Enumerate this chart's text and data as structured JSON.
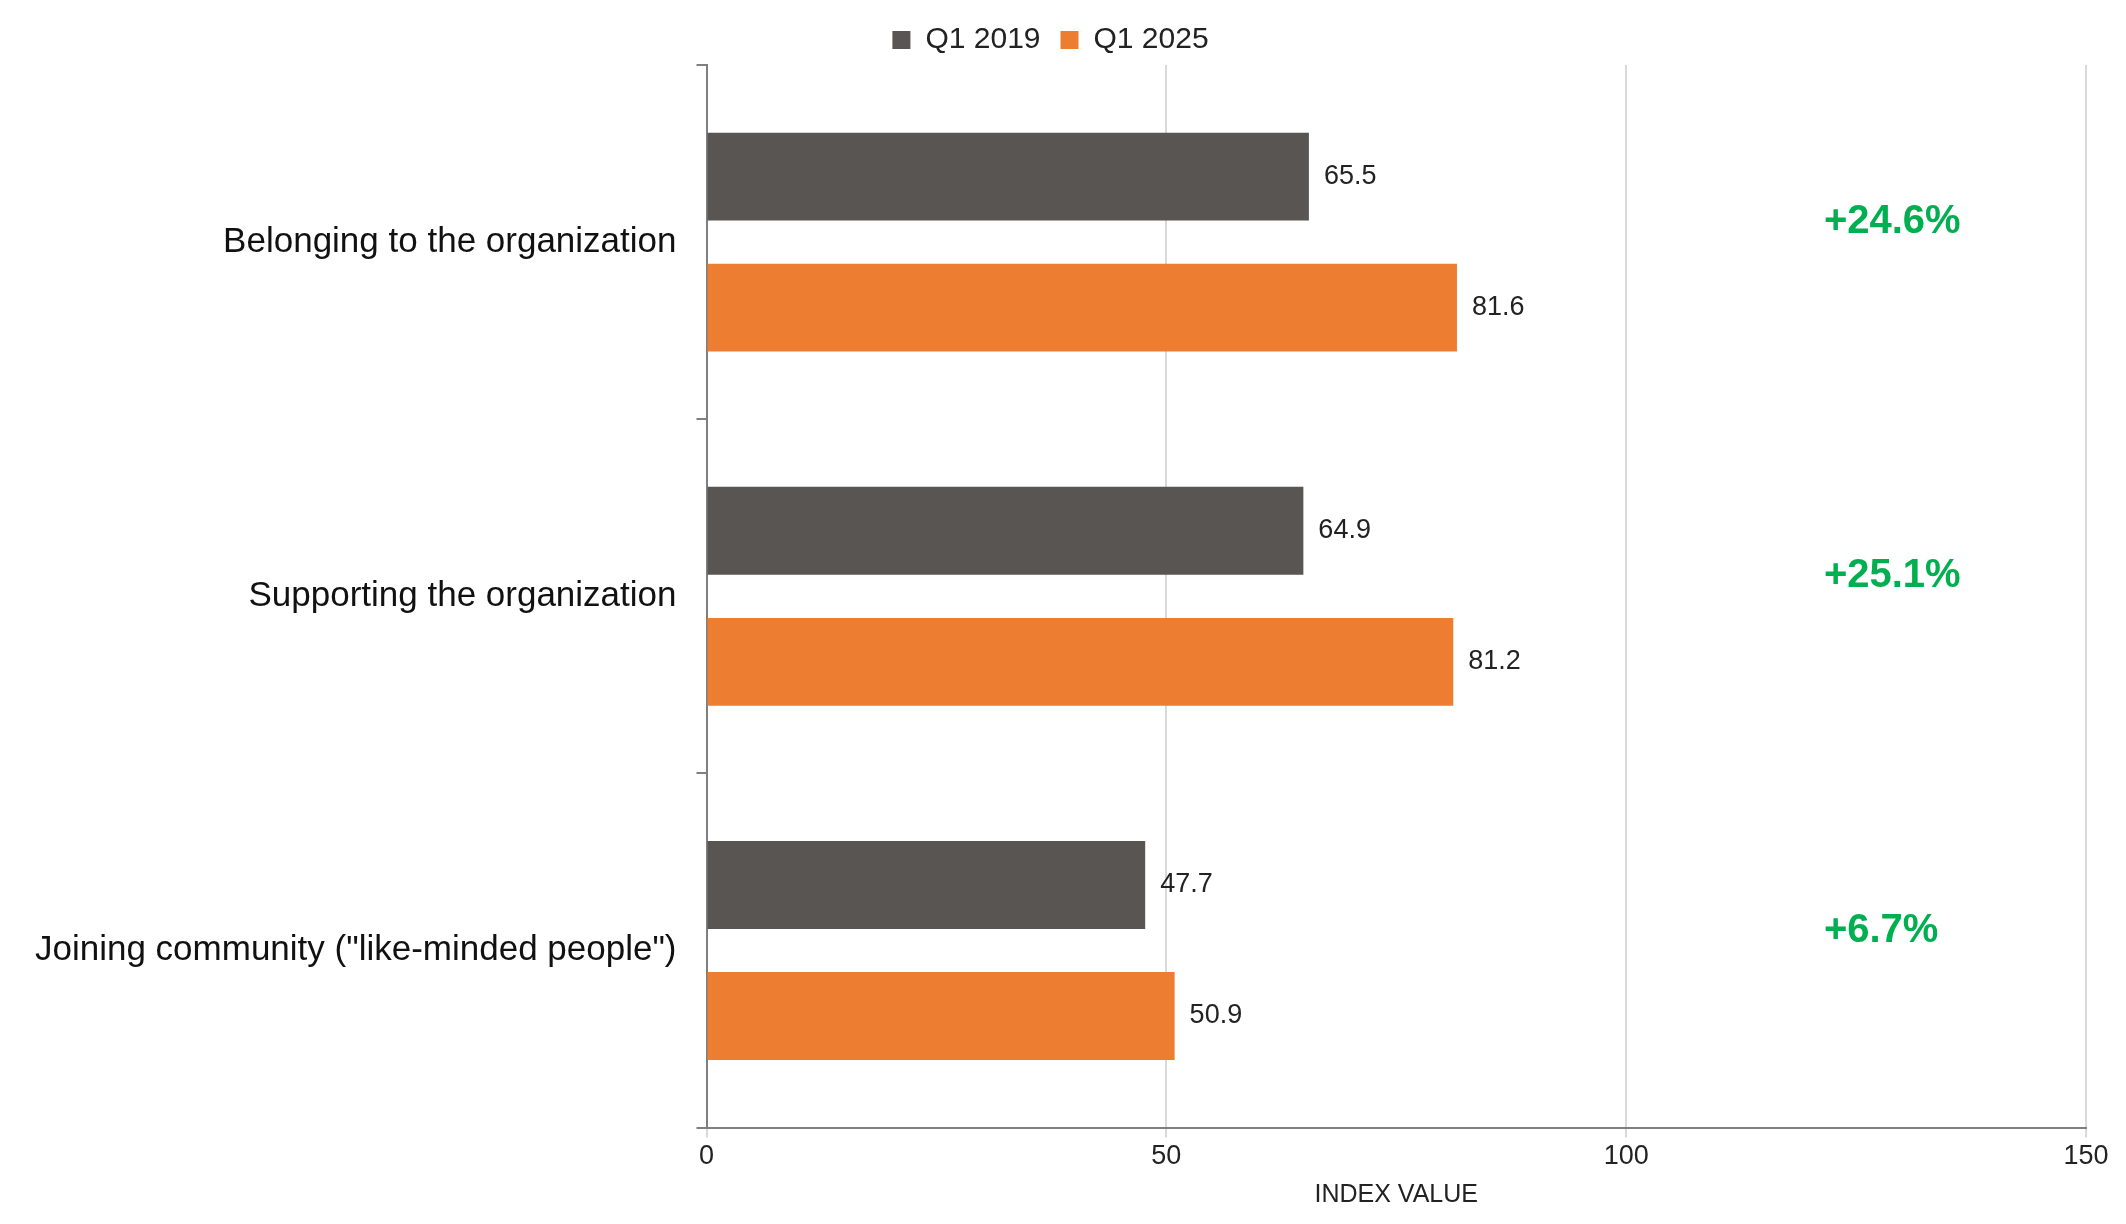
{
  "chart_data": {
    "type": "bar",
    "orientation": "horizontal",
    "xlabel": "INDEX VALUE",
    "categories": [
      "Belonging to the organization",
      "Supporting the organization",
      "Joining community (\"like-minded people\")"
    ],
    "series": [
      {
        "name": "Q1 2019",
        "color": "#595553",
        "values": [
          65.5,
          64.9,
          47.7
        ]
      },
      {
        "name": "Q1 2025",
        "color": "#ed7d31",
        "values": [
          81.6,
          81.2,
          50.9
        ]
      }
    ],
    "xlim": [
      0,
      150
    ],
    "xticks": [
      0,
      50,
      100,
      150
    ],
    "grid": "x",
    "legend": "top",
    "data_labels": true,
    "annotations": [
      "+24.6%",
      "+25.1%",
      "+6.7%"
    ]
  }
}
